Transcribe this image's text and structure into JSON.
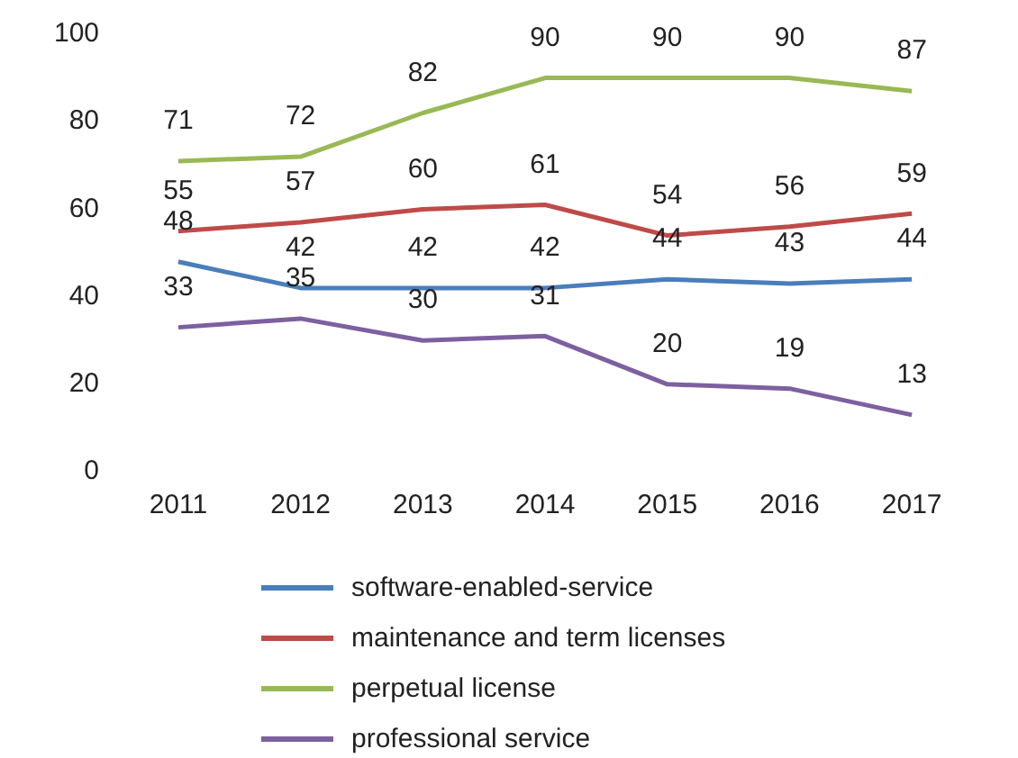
{
  "chart_data": {
    "type": "line",
    "categories": [
      "2011",
      "2012",
      "2013",
      "2014",
      "2015",
      "2016",
      "2017"
    ],
    "series": [
      {
        "name": "software-enabled-service",
        "color": "#4a7ebb",
        "values": [
          48,
          42,
          42,
          42,
          44,
          43,
          44
        ]
      },
      {
        "name": "maintenance and term licenses",
        "color": "#be4b48",
        "values": [
          55,
          57,
          60,
          61,
          54,
          56,
          59
        ]
      },
      {
        "name": "perpetual license",
        "color": "#98b954",
        "values": [
          71,
          72,
          82,
          90,
          90,
          90,
          87
        ]
      },
      {
        "name": "professional service",
        "color": "#7d60a0",
        "values": [
          33,
          35,
          30,
          31,
          20,
          19,
          13
        ]
      }
    ],
    "ylim": [
      0,
      100
    ],
    "yticks": [
      0,
      20,
      40,
      60,
      80,
      100
    ],
    "grid": false,
    "legend": "bottom",
    "marker": "none",
    "line_style": "solid",
    "data_labels": true
  }
}
